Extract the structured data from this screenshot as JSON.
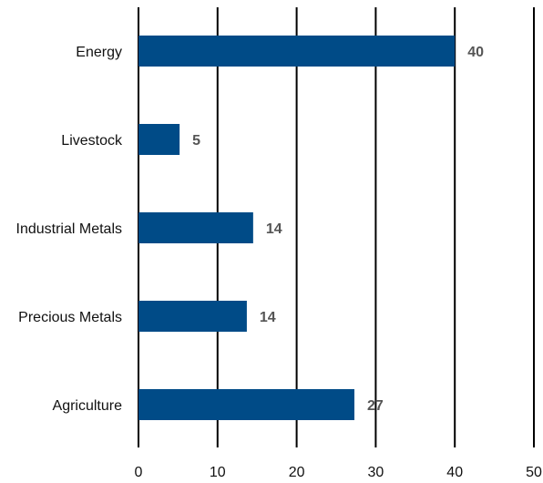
{
  "chart_data": {
    "type": "bar",
    "orientation": "horizontal",
    "title": "",
    "xlabel": "",
    "ylabel": "",
    "categories": [
      "Energy",
      "Livestock",
      "Industrial Metals",
      "Precious Metals",
      "Agriculture"
    ],
    "values": [
      40,
      5,
      14,
      14,
      27
    ],
    "data_labels": [
      "40",
      "5",
      "14",
      "14",
      "27"
    ],
    "xlim": [
      0,
      50
    ],
    "ticks": [
      0,
      10,
      20,
      30,
      40,
      50
    ],
    "tick_labels": [
      "0",
      "10",
      "20",
      "30",
      "40",
      "50"
    ],
    "bar_values_precise": [
      40.0,
      5.2,
      14.5,
      13.7,
      27.3
    ],
    "grid": true,
    "legend": "none",
    "colors": {
      "bar": "#004b87",
      "data_label": "#555555",
      "gridline": "#000000"
    }
  }
}
